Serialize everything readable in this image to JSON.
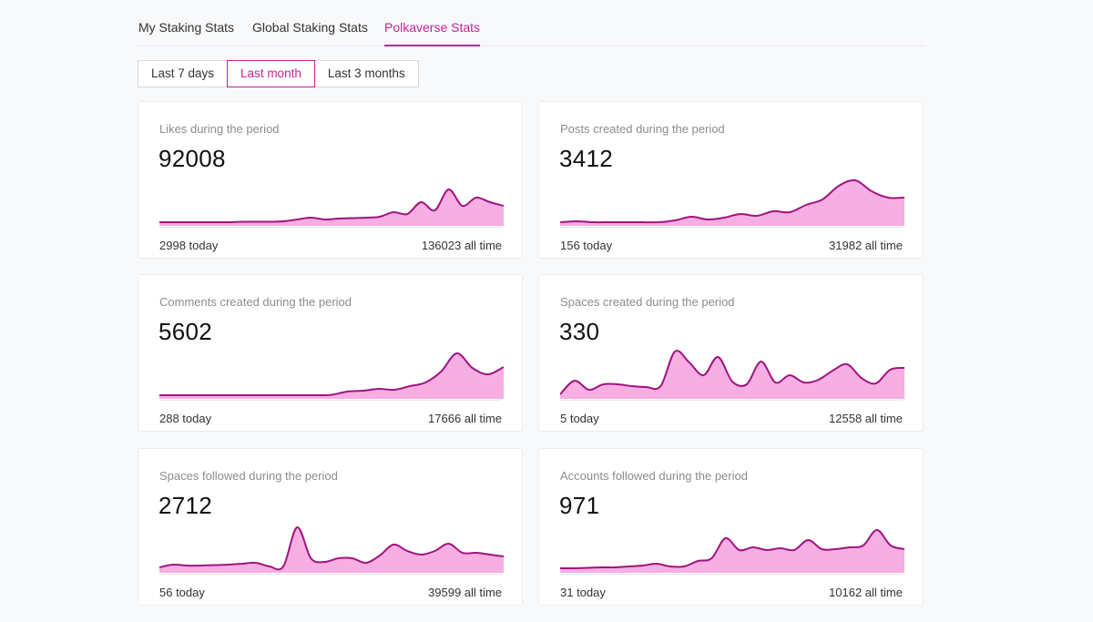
{
  "tabs": [
    {
      "label": "My Staking Stats",
      "active": false
    },
    {
      "label": "Global Staking Stats",
      "active": false
    },
    {
      "label": "Polkaverse Stats",
      "active": true
    }
  ],
  "periods": [
    {
      "label": "Last 7 days",
      "active": false
    },
    {
      "label": "Last month",
      "active": true
    },
    {
      "label": "Last 3 months",
      "active": false
    }
  ],
  "colors": {
    "accent": "#c7219a",
    "line": "#a0157f",
    "fill": "#f7aee3"
  },
  "cards": [
    {
      "title": "Likes during the period",
      "value": "92008",
      "today": "2998 today",
      "alltime": "136023 all time",
      "series": [
        2,
        2,
        2,
        2,
        2,
        2,
        2.5,
        2.5,
        2.5,
        3,
        5,
        7,
        5,
        6,
        6.5,
        7,
        8,
        13,
        11,
        24,
        15,
        38,
        20,
        29,
        24,
        20
      ]
    },
    {
      "title": "Posts created during the period",
      "value": "3412",
      "today": "156 today",
      "alltime": "31982 all time",
      "series": [
        2,
        3,
        2,
        2,
        2,
        2,
        2,
        4,
        8,
        5,
        7,
        11,
        9,
        14,
        13,
        21,
        27,
        42,
        48,
        36,
        29,
        29
      ]
    },
    {
      "title": "Comments created during the period",
      "value": "5602",
      "today": "288 today",
      "alltime": "17666 all time",
      "series": [
        2,
        2,
        2,
        2,
        2,
        2,
        2,
        2,
        2,
        2,
        2,
        2.5,
        6,
        7,
        9,
        8,
        12,
        16,
        28,
        48,
        32,
        25,
        33
      ]
    },
    {
      "title": "Spaces created during the period",
      "value": "330",
      "today": "5 today",
      "alltime": "12558 all time",
      "series": [
        3,
        18,
        8,
        14,
        14,
        12,
        11,
        12,
        50,
        38,
        24,
        44,
        17,
        14,
        39,
        16,
        24,
        16,
        19,
        29,
        36,
        21,
        15,
        30,
        32
      ]
    },
    {
      "title": "Spaces followed during the period",
      "value": "2712",
      "today": "56 today",
      "alltime": "39599 all time",
      "series": [
        4,
        7,
        6,
        6,
        6.5,
        7,
        8,
        9,
        5,
        5,
        48,
        14,
        10,
        14,
        14,
        9,
        17,
        29,
        22,
        18,
        22,
        30,
        20,
        20,
        18,
        16
      ]
    },
    {
      "title": "Accounts followed during the period",
      "value": "971",
      "today": "31 today",
      "alltime": "10162 all time",
      "series": [
        3,
        3,
        3.5,
        4,
        4,
        5,
        6,
        8,
        5,
        5,
        11,
        14,
        36,
        23,
        26,
        23,
        25,
        23,
        34,
        24,
        24,
        26,
        28,
        45,
        28,
        24
      ]
    }
  ]
}
